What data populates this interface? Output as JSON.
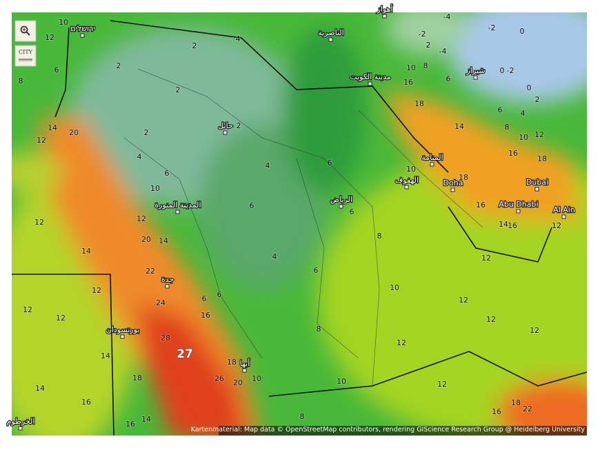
{
  "controls": {
    "city": "CITY"
  },
  "cities": [
    "ירושלים",
    "الناصرية",
    "أهواز",
    "مدينة الكويت",
    "شيراز",
    "حائل",
    "المنامة",
    "الهفوف",
    "Doha",
    "Dubai",
    "Abu Dhabi",
    "Al Ain",
    "الرياض",
    "المدينة المنورة",
    "جدة",
    "بورتسودان",
    "أبها",
    "الخرطوم"
  ],
  "contour_labels": [
    14,
    12,
    10,
    8,
    6,
    2,
    2,
    2,
    2,
    2,
    4,
    4,
    4,
    6,
    6,
    4,
    6,
    6,
    6,
    8,
    10,
    12,
    12,
    14,
    20,
    12,
    14,
    20,
    14,
    22,
    24,
    16,
    6,
    6,
    28,
    27,
    26,
    18,
    20,
    10,
    12,
    12,
    12,
    14,
    18,
    14,
    16,
    14,
    16,
    8,
    10,
    12,
    10,
    12,
    12,
    12,
    12,
    12,
    12,
    16,
    18,
    14,
    10,
    12,
    16,
    18,
    8,
    6,
    4,
    2,
    0,
    -2,
    -2,
    0,
    -4,
    -4,
    2,
    10,
    8,
    6,
    0,
    -2,
    16,
    18,
    22,
    8,
    14,
    16,
    10,
    18,
    16
  ],
  "attribution": "Kartenmaterial: Map data © OpenStreetMap contributors, rendering GIScience Research Group @ Heidelberg University"
}
